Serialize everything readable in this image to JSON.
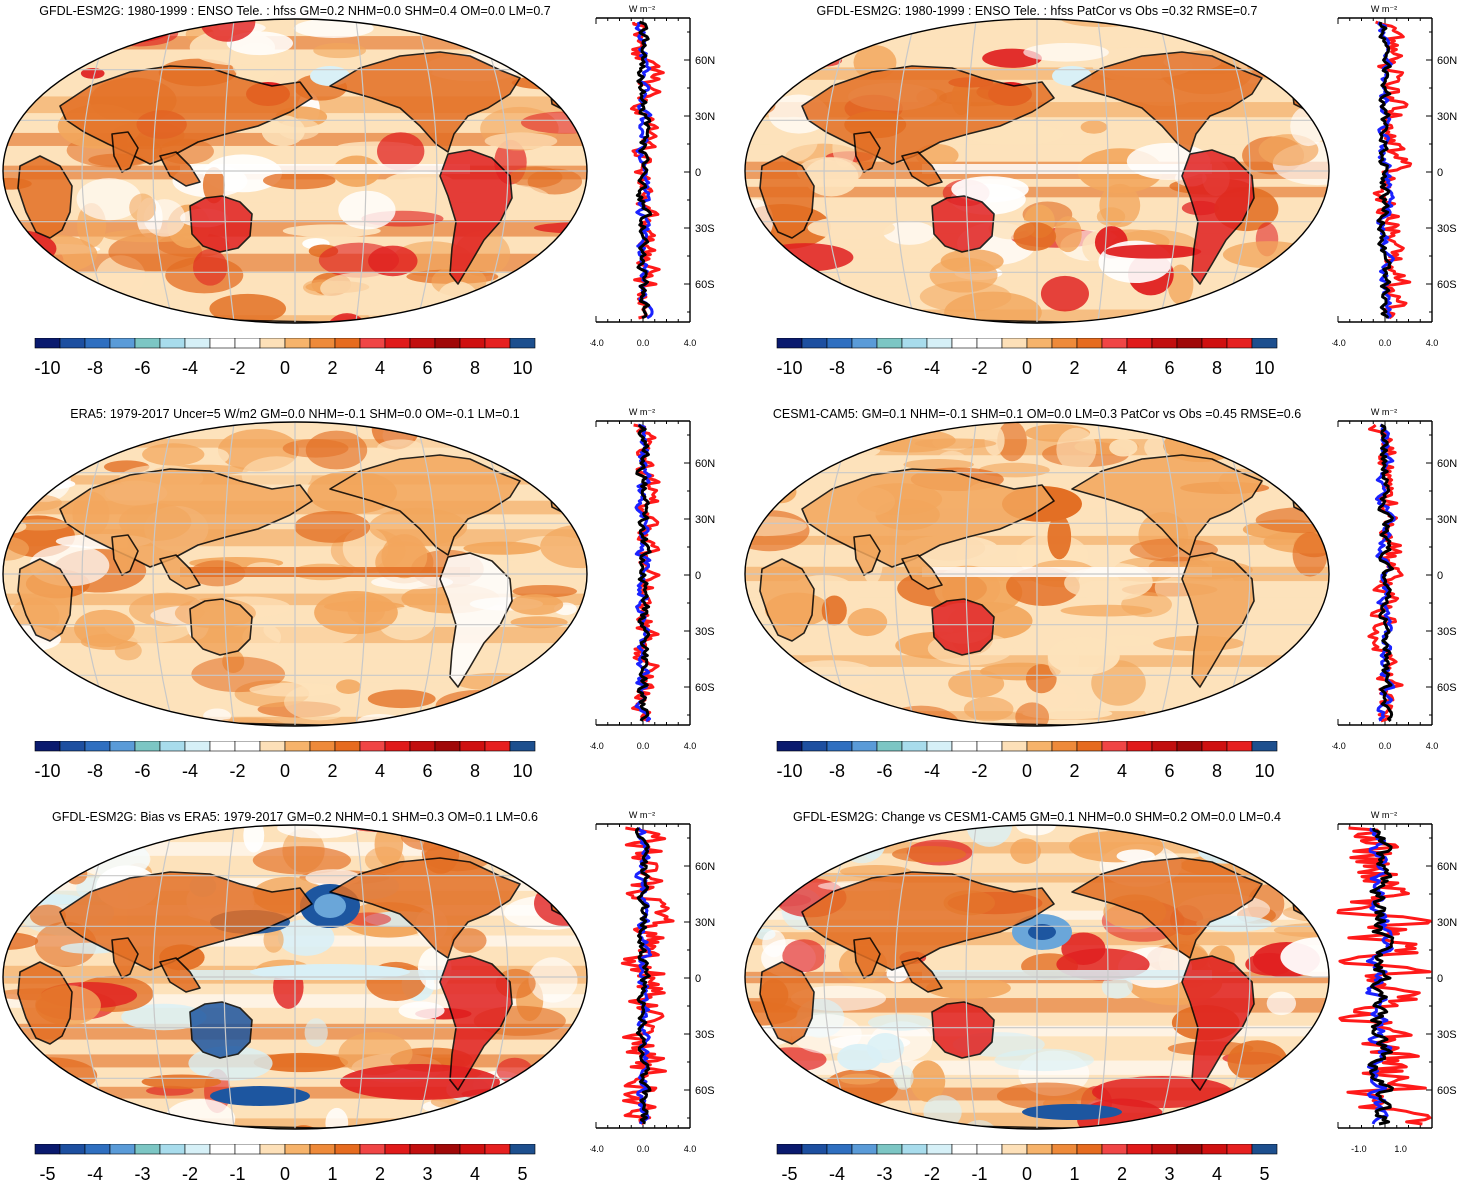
{
  "colorbar_colors": [
    "#0a1a6e",
    "#1d4fa0",
    "#2f6fc0",
    "#5a9bd8",
    "#7cc6c4",
    "#a8dcec",
    "#d6f0f7",
    "#ffffff",
    "#ffffff",
    "#fde0b8",
    "#f6b36b",
    "#ee8a3a",
    "#e66b1f",
    "#f04545",
    "#e01a1a",
    "#c20f0f",
    "#a00808",
    "#cf1010",
    "#e62020",
    "#1d4f8e"
  ],
  "map_fill_colors": {
    "ocean_base": "#fde2bb",
    "positive_mid": "#f2a65c",
    "positive_high": "#e36f24",
    "negative_light": "#d9f0f6",
    "negative_mid": "#6aa6d9",
    "negative_high": "#1d56a0",
    "strong_red": "#e02020",
    "grid": "#c8c8c8"
  },
  "line_colors": {
    "red": "#ff1a1a",
    "blue": "#1a22ff",
    "black": "#000000"
  },
  "panels": [
    {
      "id": "p1",
      "title": "GFDL-ESM2G: 1980-1999 : ENSO Tele. : hfss GM=0.2 NHM=0.0 SHM=0.4 OM=0.0 LM=0.7",
      "colorbar_labels": [
        "-10",
        "-8",
        "-6",
        "-4",
        "-2",
        "0",
        "2",
        "4",
        "6",
        "8",
        "10"
      ],
      "profile": {
        "units": "W m⁻²",
        "xticks": [
          "-4.0",
          "0.0",
          "4.0"
        ],
        "yticks": [
          "60N",
          "30N",
          "0",
          "30S",
          "60S"
        ],
        "xlim": [
          -4,
          4
        ]
      }
    },
    {
      "id": "p2",
      "title": "GFDL-ESM2G: 1980-1999 : ENSO Tele. : hfss PatCor vs Obs =0.32 RMSE=0.7",
      "colorbar_labels": [
        "-10",
        "-8",
        "-6",
        "-4",
        "-2",
        "0",
        "2",
        "4",
        "6",
        "8",
        "10"
      ],
      "profile": {
        "units": "W m⁻²",
        "xticks": [
          "-4.0",
          "0.0",
          "4.0"
        ],
        "yticks": [
          "60N",
          "30N",
          "0",
          "30S",
          "60S"
        ],
        "xlim": [
          -4,
          4
        ]
      }
    },
    {
      "id": "p3",
      "title": "ERA5: 1979-2017 Uncer=5 W/m2 GM=0.0 NHM=-0.1 SHM=0.0 OM=-0.1 LM=0.1",
      "colorbar_labels": [
        "-10",
        "-8",
        "-6",
        "-4",
        "-2",
        "0",
        "2",
        "4",
        "6",
        "8",
        "10"
      ],
      "profile": {
        "units": "W m⁻²",
        "xticks": [
          "-4.0",
          "0.0",
          "4.0"
        ],
        "yticks": [
          "60N",
          "30N",
          "0",
          "30S",
          "60S"
        ],
        "xlim": [
          -4,
          4
        ]
      }
    },
    {
      "id": "p4",
      "title": "CESM1-CAM5: GM=0.1 NHM=-0.1 SHM=0.1 OM=0.0 LM=0.3 PatCor vs Obs =0.45 RMSE=0.6",
      "colorbar_labels": [
        "-10",
        "-8",
        "-6",
        "-4",
        "-2",
        "0",
        "2",
        "4",
        "6",
        "8",
        "10"
      ],
      "profile": {
        "units": "W m⁻²",
        "xticks": [
          "-4.0",
          "0.0",
          "4.0"
        ],
        "yticks": [
          "60N",
          "30N",
          "0",
          "30S",
          "60S"
        ],
        "xlim": [
          -4,
          4
        ]
      }
    },
    {
      "id": "p5",
      "title": "GFDL-ESM2G: Bias vs ERA5: 1979-2017 GM=0.2 NHM=0.1 SHM=0.3 OM=0.1 LM=0.6",
      "colorbar_labels": [
        "-5",
        "-4",
        "-3",
        "-2",
        "-1",
        "0",
        "1",
        "2",
        "3",
        "4",
        "5"
      ],
      "profile": {
        "units": "W m⁻²",
        "xticks": [
          "-4.0",
          "0.0",
          "4.0"
        ],
        "yticks": [
          "60N",
          "30N",
          "0",
          "30S",
          "60S"
        ],
        "xlim": [
          -4,
          4
        ]
      }
    },
    {
      "id": "p6",
      "title": "GFDL-ESM2G: Change vs CESM1-CAM5 GM=0.1 NHM=0.0 SHM=0.2 OM=0.0 LM=0.4",
      "colorbar_labels": [
        "-5",
        "-4",
        "-3",
        "-2",
        "-1",
        "0",
        "1",
        "2",
        "3",
        "4",
        "5"
      ],
      "profile": {
        "units": "W m⁻²",
        "xticks": [
          "-1.0",
          "1.0"
        ],
        "yticks": [
          "60N",
          "30N",
          "0",
          "30S",
          "60S"
        ],
        "xlim": [
          -2,
          2.5
        ]
      }
    }
  ]
}
